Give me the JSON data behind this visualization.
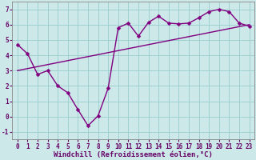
{
  "line1_x": [
    0,
    1,
    2,
    3,
    4,
    5,
    6,
    7,
    8,
    9,
    10,
    11,
    12,
    13,
    14,
    15,
    16,
    17,
    18,
    19,
    20,
    21,
    22,
    23
  ],
  "line1_y": [
    4.7,
    4.1,
    2.75,
    3.0,
    2.0,
    1.55,
    0.45,
    -0.6,
    0.05,
    1.85,
    5.8,
    6.1,
    5.25,
    6.15,
    6.55,
    6.1,
    6.05,
    6.1,
    6.45,
    6.85,
    7.0,
    6.85,
    6.1,
    5.9
  ],
  "line2_x": [
    0,
    23
  ],
  "line2_y": [
    3.0,
    6.0
  ],
  "line_color": "#800080",
  "bg_color": "#cce8e8",
  "grid_color": "#99cccc",
  "xlabel": "Windchill (Refroidissement éolien,°C)",
  "xlim": [
    -0.5,
    23.5
  ],
  "ylim": [
    -1.5,
    7.5
  ],
  "ytick_vals": [
    -1,
    0,
    1,
    2,
    3,
    4,
    5,
    6,
    7
  ],
  "xtick_vals": [
    0,
    1,
    2,
    3,
    4,
    5,
    6,
    7,
    8,
    9,
    10,
    11,
    12,
    13,
    14,
    15,
    16,
    17,
    18,
    19,
    20,
    21,
    22,
    23
  ],
  "marker": "D",
  "markersize": 2.5,
  "linewidth": 1.0,
  "xlabel_fontsize": 6.5,
  "tick_fontsize": 5.5
}
